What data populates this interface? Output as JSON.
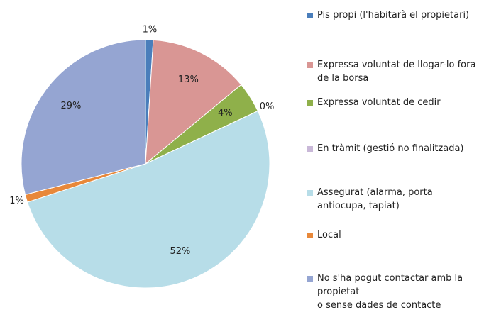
{
  "chart_data": {
    "type": "pie",
    "categories": [
      "Pis propi (l'habitarà el propietari)",
      "Expressa voluntat de llogar-lo fora de la borsa",
      "Expressa voluntat de cedir",
      "En tràmit (gestió no finalitzada)",
      "Assegurat (alarma, porta antiocupa, tapiat)",
      "Local",
      "No s'ha pogut contactar amb la propietat\n o sense dades de contacte"
    ],
    "values": [
      1,
      13,
      4,
      0,
      52,
      1,
      29
    ],
    "value_labels": [
      "1%",
      "13%",
      "4%",
      "0%",
      "52%",
      "1%",
      "29%"
    ],
    "colors": [
      "#4a7ebb",
      "#d99694",
      "#8fb04a",
      "#c9b8d8",
      "#b7dde8",
      "#e8883a",
      "#95a5d2"
    ],
    "legend": "right"
  }
}
